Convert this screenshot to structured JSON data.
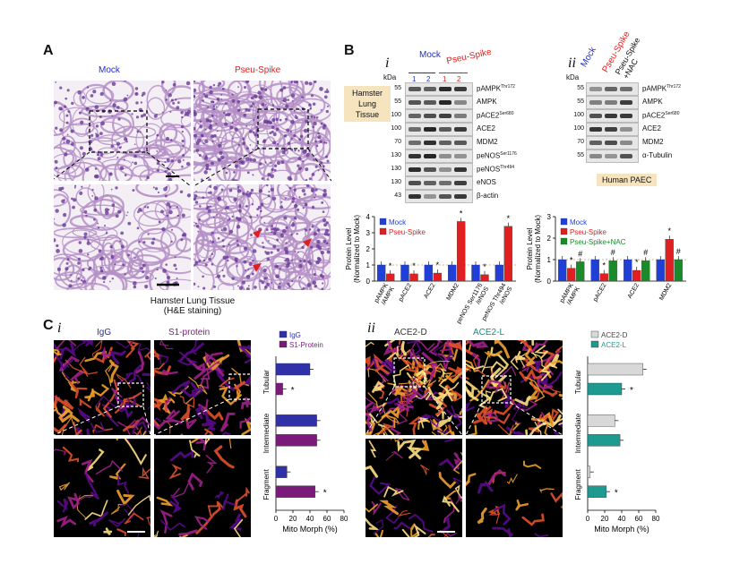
{
  "panelA": {
    "letter": "A",
    "mock_label": "Mock",
    "spike_label": "Pseu-Spike",
    "caption1": "Hamster Lung Tissue",
    "caption2": "(H&E staining)"
  },
  "panelB": {
    "letter": "B",
    "sub_i": "i",
    "sub_ii": "ii",
    "kda": "kDa",
    "mock": "Mock",
    "spike": "Pseu-Spike",
    "lanes_mock": [
      "1",
      "2"
    ],
    "lanes_spike": [
      "1",
      "2"
    ],
    "tissue_tag": [
      "Hamster",
      "Lung",
      "Tissue"
    ],
    "cell_tag": "Human PAEC",
    "nac_label": [
      "Pseu-Spike",
      "+NAC"
    ],
    "blots_i": [
      {
        "kda": "55",
        "label": "pAMPK",
        "sup": "Thr172"
      },
      {
        "kda": "55",
        "label": "AMPK",
        "sup": ""
      },
      {
        "kda": "100",
        "label": "pACE2",
        "sup": "Ser680"
      },
      {
        "kda": "100",
        "label": "ACE2",
        "sup": ""
      },
      {
        "kda": "70",
        "label": "MDM2",
        "sup": ""
      },
      {
        "kda": "130",
        "label": "peNOS",
        "sup": "Ser1176"
      },
      {
        "kda": "130",
        "label": "peNOS",
        "sup": "Thr494"
      },
      {
        "kda": "130",
        "label": "eNOS",
        "sup": ""
      },
      {
        "kda": "43",
        "label": "β-actin",
        "sup": ""
      }
    ],
    "blots_ii": [
      {
        "kda": "55",
        "label": "pAMPK",
        "sup": "Thr172"
      },
      {
        "kda": "55",
        "label": "AMPK",
        "sup": ""
      },
      {
        "kda": "100",
        "label": "pACE2",
        "sup": "Ser680"
      },
      {
        "kda": "100",
        "label": "ACE2",
        "sup": ""
      },
      {
        "kda": "70",
        "label": "MDM2",
        "sup": ""
      },
      {
        "kda": "55",
        "label": "α-Tubulin",
        "sup": ""
      }
    ],
    "ylabel1": "Protein Level",
    "ylabel2": "(Normalized to Mock)",
    "legend_i": [
      "Mock",
      "Pseu-Spike"
    ],
    "legend_ii": [
      "Mock",
      "Pseu-Spike",
      "Pseu-Spike+NAC"
    ]
  },
  "panelC": {
    "letter": "C",
    "sub_i": "i",
    "sub_ii": "ii",
    "img_labels_i": [
      "IgG",
      "S1-protein"
    ],
    "img_labels_ii": [
      "ACE2-D",
      "ACE2-L"
    ],
    "colors": {
      "igg": "#2a2aa0",
      "s1": "#7a1a7a",
      "ace2d": "#333333",
      "ace2l": "#1a8a80"
    }
  },
  "colors": {
    "mock": "#1f3fd6",
    "spike": "#e02020",
    "nac": "#1a8a2a",
    "igg": "#3030a8",
    "s1": "#7a1a7a",
    "ace2d": "#d8d8d8",
    "ace2l": "#1e9a90"
  },
  "chart_data": [
    {
      "type": "bar",
      "ylabel": "Protein Level (Normalized to Mock)",
      "ylim": [
        0,
        4
      ],
      "yticks": [
        0,
        1,
        2,
        3,
        4
      ],
      "categories": [
        "pAMPK\n/AMPK",
        "pACE2",
        "ACE2",
        "MDM2",
        "peNOS^Ser1176\n/eNOS",
        "peNOS^Thr494\n/eNOS"
      ],
      "series": [
        {
          "name": "Mock",
          "values": [
            1.0,
            1.0,
            1.0,
            1.0,
            1.0,
            1.0
          ]
        },
        {
          "name": "Pseu-Spike",
          "values": [
            0.45,
            0.45,
            0.5,
            3.7,
            0.4,
            3.4
          ]
        }
      ],
      "significance": [
        {
          "category": "pAMPK\n/AMPK",
          "series": "Pseu-Spike",
          "mark": "*"
        },
        {
          "category": "pACE2",
          "series": "Pseu-Spike",
          "mark": "*"
        },
        {
          "category": "ACE2",
          "series": "Pseu-Spike",
          "mark": "*"
        },
        {
          "category": "MDM2",
          "series": "Pseu-Spike",
          "mark": "*"
        },
        {
          "category": "peNOS^Ser1176\n/eNOS",
          "series": "Pseu-Spike",
          "mark": "*"
        },
        {
          "category": "peNOS^Thr494\n/eNOS",
          "series": "Pseu-Spike",
          "mark": "*"
        }
      ]
    },
    {
      "type": "bar",
      "ylabel": "Protein Level (Normalized to Mock)",
      "ylim": [
        0,
        3
      ],
      "yticks": [
        0,
        1,
        2,
        3
      ],
      "categories": [
        "pAMPK\n/AMPK",
        "pACE2",
        "ACE2",
        "MDM2"
      ],
      "series": [
        {
          "name": "Mock",
          "values": [
            1.0,
            1.0,
            1.0,
            1.0
          ]
        },
        {
          "name": "Pseu-Spike",
          "values": [
            0.6,
            0.35,
            0.5,
            1.95
          ]
        },
        {
          "name": "Pseu-Spike+NAC",
          "values": [
            0.9,
            0.95,
            0.95,
            1.0
          ]
        }
      ],
      "significance": [
        {
          "category": "pAMPK\n/AMPK",
          "series": "Pseu-Spike",
          "mark": "*"
        },
        {
          "category": "pAMPK\n/AMPK",
          "series": "Pseu-Spike+NAC",
          "mark": "#"
        },
        {
          "category": "pACE2",
          "series": "Pseu-Spike",
          "mark": "*"
        },
        {
          "category": "pACE2",
          "series": "Pseu-Spike+NAC",
          "mark": "#"
        },
        {
          "category": "ACE2",
          "series": "Pseu-Spike",
          "mark": "*"
        },
        {
          "category": "ACE2",
          "series": "Pseu-Spike+NAC",
          "mark": "#"
        },
        {
          "category": "MDM2",
          "series": "Pseu-Spike",
          "mark": "*"
        },
        {
          "category": "MDM2",
          "series": "Pseu-Spike+NAC",
          "mark": "#"
        }
      ]
    },
    {
      "type": "bar",
      "orientation": "horizontal",
      "xlabel": "Mito Morph (%)",
      "xlim": [
        0,
        80
      ],
      "xticks": [
        0,
        20,
        40,
        60,
        80
      ],
      "categories": [
        "Tubular",
        "Intermediate",
        "Fragment"
      ],
      "series": [
        {
          "name": "IgG",
          "values": [
            40,
            48,
            13
          ]
        },
        {
          "name": "S1-Protein",
          "values": [
            8,
            48,
            46
          ]
        }
      ],
      "significance": [
        {
          "category": "Tubular",
          "series": "S1-Protein",
          "mark": "*"
        },
        {
          "category": "Fragment",
          "series": "S1-Protein",
          "mark": "*"
        }
      ]
    },
    {
      "type": "bar",
      "orientation": "horizontal",
      "xlabel": "Mito Morph (%)",
      "xlim": [
        0,
        80
      ],
      "xticks": [
        0,
        20,
        40,
        60,
        80
      ],
      "categories": [
        "Tubular",
        "Intermediate",
        "Fragment"
      ],
      "series": [
        {
          "name": "ACE2-D",
          "values": [
            65,
            32,
            3
          ]
        },
        {
          "name": "ACE2-L",
          "values": [
            40,
            38,
            22
          ]
        }
      ],
      "significance": [
        {
          "category": "Tubular",
          "series": "ACE2-L",
          "mark": "*"
        },
        {
          "category": "Fragment",
          "series": "ACE2-L",
          "mark": "*"
        }
      ]
    }
  ]
}
